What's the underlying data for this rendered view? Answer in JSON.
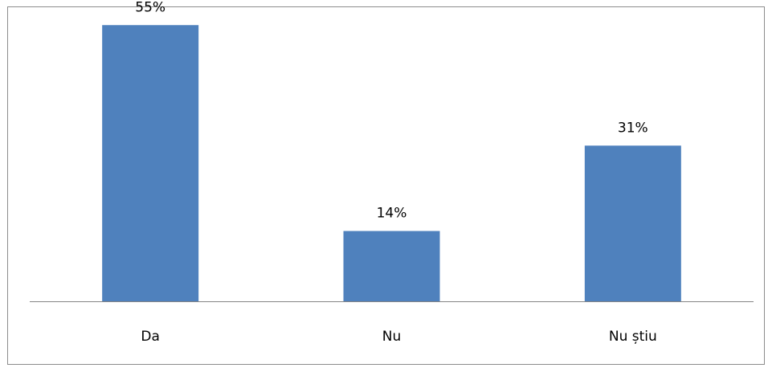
{
  "chart_data": {
    "type": "bar",
    "categories": [
      "Da",
      "Nu",
      "Nu știu"
    ],
    "values": [
      55,
      14,
      31
    ],
    "value_labels": [
      "55%",
      "14%",
      "31%"
    ],
    "ylim": [
      0,
      60
    ],
    "grid": false,
    "legend": "none",
    "colors": {
      "bar": "#4f81bd",
      "axis": "#868686"
    }
  }
}
